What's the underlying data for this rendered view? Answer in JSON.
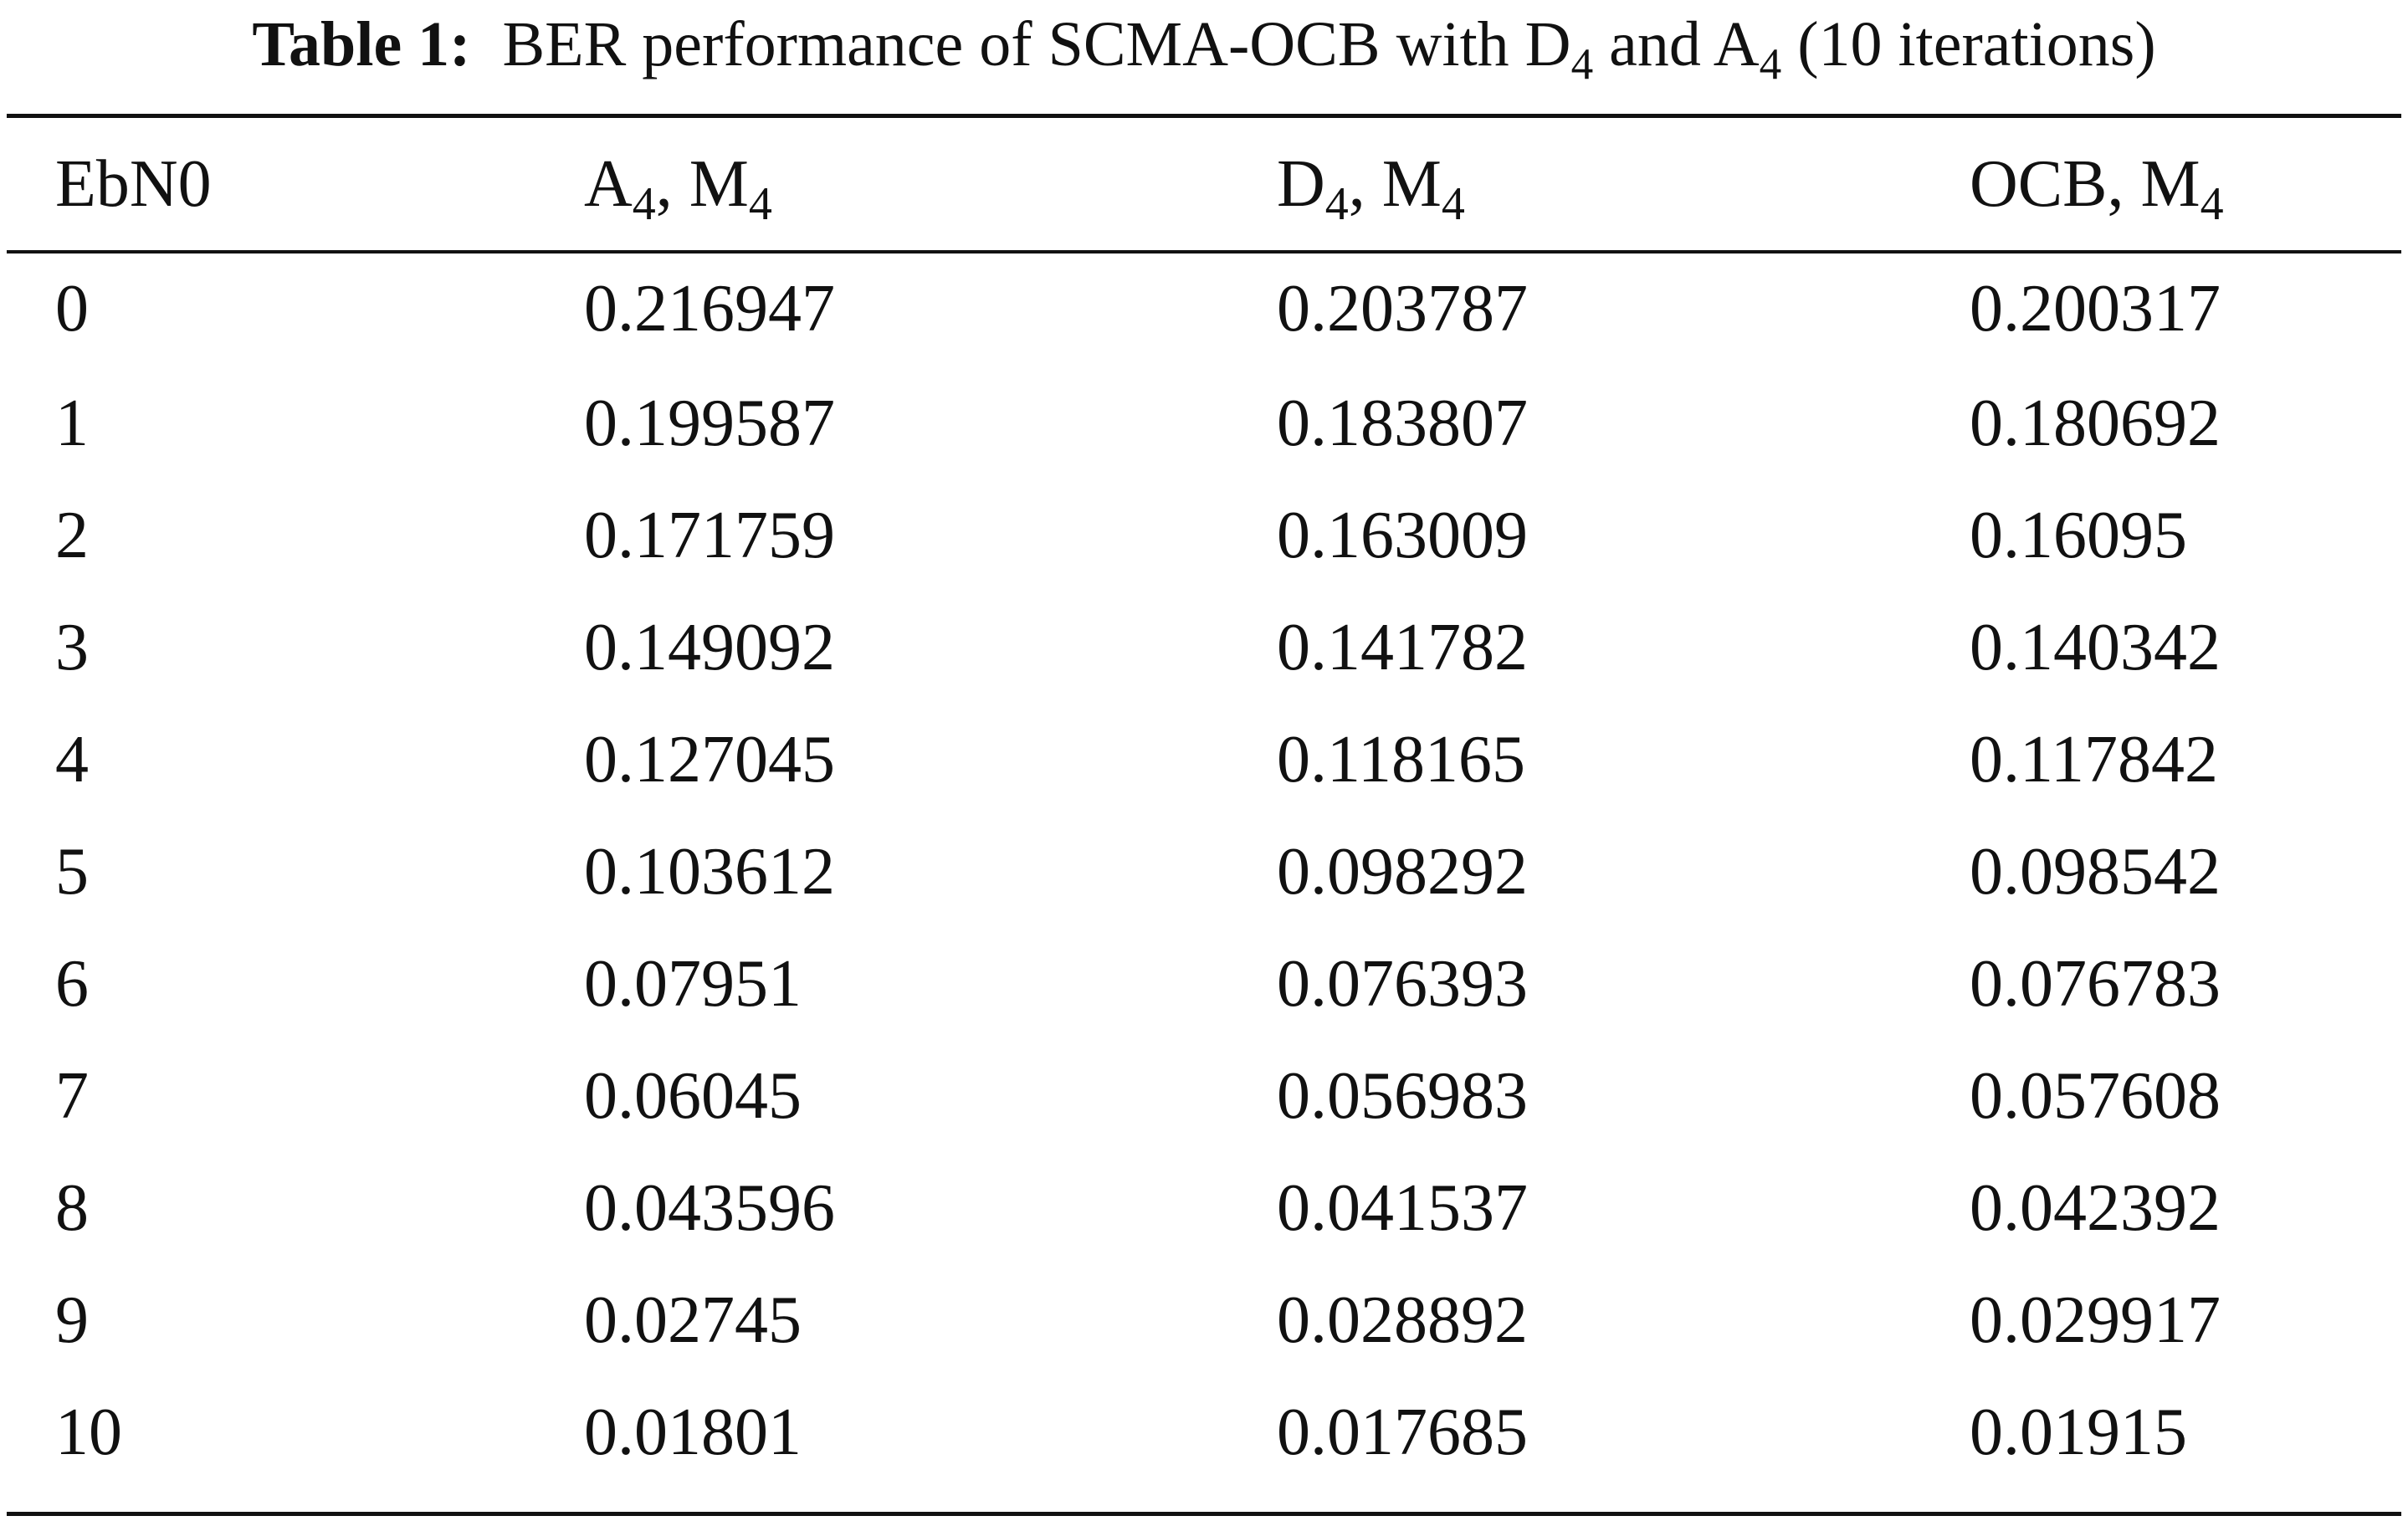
{
  "caption": {
    "label": "Table 1:",
    "text_parts": [
      "BER performance of SCMA-OCB with D",
      "4",
      " and A",
      "4",
      " (10 iterations)"
    ]
  },
  "table": {
    "headers": [
      {
        "main": "EbN0",
        "sub1": "",
        "mid": "",
        "sub2": ""
      },
      {
        "main": "A",
        "sub1": "4",
        "mid": ", M",
        "sub2": "4"
      },
      {
        "main": "D",
        "sub1": "4",
        "mid": ", M",
        "sub2": "4"
      },
      {
        "main": "OCB, M",
        "sub1": "4",
        "mid": "",
        "sub2": ""
      }
    ],
    "rows": [
      [
        "0",
        "0.216947",
        "0.203787",
        "0.200317"
      ],
      [
        "1",
        "0.199587",
        "0.183807",
        "0.180692"
      ],
      [
        "2",
        "0.171759",
        "0.163009",
        "0.16095"
      ],
      [
        "3",
        "0.149092",
        "0.141782",
        "0.140342"
      ],
      [
        "4",
        "0.127045",
        "0.118165",
        "0.117842"
      ],
      [
        "5",
        "0.103612",
        "0.098292",
        "0.098542"
      ],
      [
        "6",
        "0.07951",
        "0.076393",
        "0.076783"
      ],
      [
        "7",
        "0.06045",
        "0.056983",
        "0.057608"
      ],
      [
        "8",
        "0.043596",
        "0.041537",
        "0.042392"
      ],
      [
        "9",
        "0.02745",
        "0.028892",
        "0.029917"
      ],
      [
        "10",
        "0.01801",
        "0.017685",
        "0.01915"
      ]
    ]
  }
}
